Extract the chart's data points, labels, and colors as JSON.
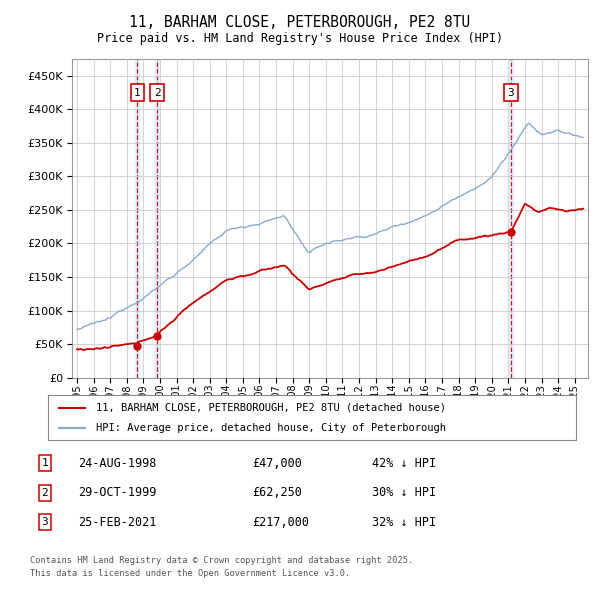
{
  "title": "11, BARHAM CLOSE, PETERBOROUGH, PE2 8TU",
  "subtitle": "Price paid vs. HM Land Registry's House Price Index (HPI)",
  "legend_property": "11, BARHAM CLOSE, PETERBOROUGH, PE2 8TU (detached house)",
  "legend_hpi": "HPI: Average price, detached house, City of Peterborough",
  "transactions": [
    {
      "num": 1,
      "date": "24-AUG-1998",
      "year": 1998.64,
      "price": 47000,
      "label": "42% ↓ HPI"
    },
    {
      "num": 2,
      "date": "29-OCT-1999",
      "year": 1999.83,
      "price": 62250,
      "label": "30% ↓ HPI"
    },
    {
      "num": 3,
      "date": "25-FEB-2021",
      "year": 2021.15,
      "price": 217000,
      "label": "32% ↓ HPI"
    }
  ],
  "footnote1": "Contains HM Land Registry data © Crown copyright and database right 2025.",
  "footnote2": "This data is licensed under the Open Government Licence v3.0.",
  "property_color": "#cc0000",
  "hpi_color": "#88aacc",
  "vline_color": "#cc0000",
  "vline_fill": "#ddeeff",
  "background_color": "#ffffff",
  "grid_color": "#cccccc",
  "ylim": [
    0,
    475000
  ],
  "xlim_start": 1994.7,
  "xlim_end": 2025.8
}
